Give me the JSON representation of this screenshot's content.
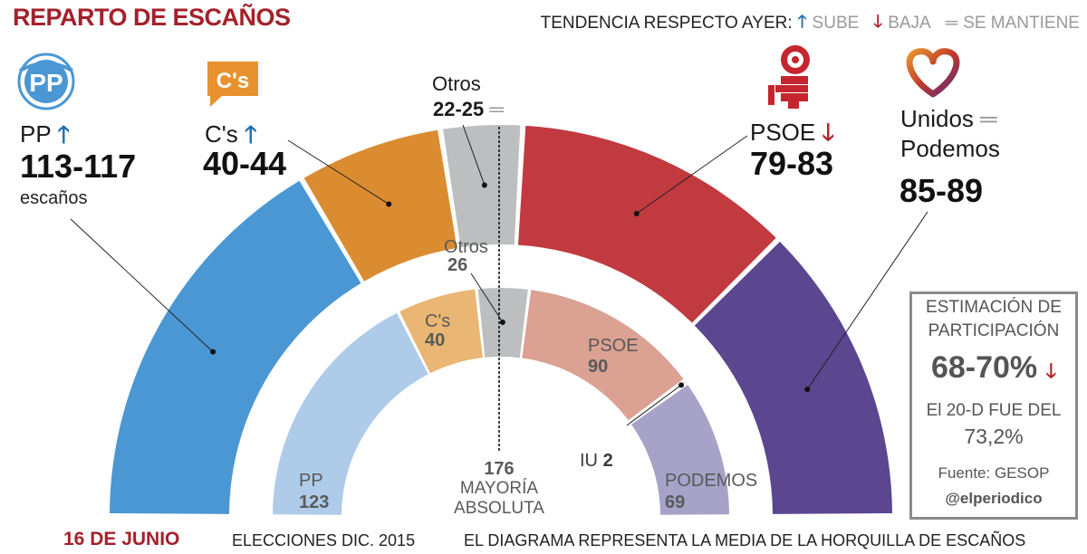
{
  "header": {
    "title": "REPARTO DE ESCAÑOS",
    "legend_label": "TENDENCIA RESPECTO AYER:",
    "legend_up": "SUBE",
    "legend_down": "BAJA",
    "legend_same": "SE MANTIENE"
  },
  "glyphs": {
    "up": "🡑",
    "down": "🡓",
    "same": "═"
  },
  "colors": {
    "brand_red": "#a3212b",
    "pp_outer": "#4a97d4",
    "cs_outer": "#db8c31",
    "otros_outer": "#bcbec0",
    "psoe_outer": "#c13a40",
    "podemos_outer": "#5b4690",
    "pp_inner": "#aecbe9",
    "cs_inner": "#e9b673",
    "otros_inner": "#bcbec0",
    "psoe_inner": "#dba193",
    "iu_inner": "#c9c9c9",
    "podemos_inner": "#a6a2c8"
  },
  "parties": {
    "pp": {
      "name": "PP",
      "range": "113-117",
      "unit": "escaños",
      "trend": "up"
    },
    "cs": {
      "name": "C's",
      "range": "40-44",
      "trend": "up"
    },
    "otros": {
      "name": "Otros",
      "range": "22-25",
      "trend": "same"
    },
    "psoe": {
      "name": "PSOE",
      "range": "79-83",
      "trend": "down"
    },
    "podemos": {
      "name_line1": "Unidos",
      "name_line2": "Podemos",
      "range": "85-89",
      "trend": "same"
    }
  },
  "inner_labels": {
    "pp": {
      "name": "PP",
      "value": "123"
    },
    "cs": {
      "name": "C's",
      "value": "40"
    },
    "otros": {
      "name": "Otros",
      "value": "26"
    },
    "psoe": {
      "name": "PSOE",
      "value": "90"
    },
    "iu": {
      "name": "IU",
      "value": "2"
    },
    "podemos": {
      "name": "PODEMOS",
      "value": "69"
    }
  },
  "majority": {
    "value": "176",
    "line1": "MAYORÍA",
    "line2": "ABSOLUTA"
  },
  "participation": {
    "line1": "ESTIMACIÓN DE",
    "line2": "PARTICIPACIÓN",
    "range": "68-70%",
    "trend": "down",
    "prev_line1": "El 20-D FUE DEL",
    "prev_value": "73,2%",
    "source": "Fuente: GESOP",
    "handle": "@elperiodico"
  },
  "logos": {
    "cs": "C's",
    "pp": "PP"
  },
  "footer": {
    "date": "16 DE JUNIO",
    "inner_note": "ELECCIONES DIC. 2015",
    "outer_note": "EL DIAGRAMA REPRESENTA LA MEDIA DE LA HORQUILLA DE ESCAÑOS"
  },
  "chart_data": [
    {
      "type": "pie",
      "title": "",
      "note": "EL DIAGRAMA REPRESENTA LA MEDIA DE LA HORQUILLA DE ESCAÑOS",
      "categories": [
        "PP",
        "C's",
        "Otros",
        "PSOE",
        "Unidos Podemos"
      ],
      "ranges": [
        "113-117",
        "40-44",
        "22-25",
        "79-83",
        "85-89"
      ],
      "values": [
        115,
        42,
        23.5,
        81,
        87
      ],
      "trend": [
        "up",
        "up",
        "same",
        "down",
        "same"
      ]
    },
    {
      "type": "pie",
      "title": "ELECCIONES DIC. 2015",
      "categories": [
        "PP",
        "C's",
        "Otros",
        "PSOE",
        "IU",
        "PODEMOS"
      ],
      "values": [
        123,
        40,
        26,
        90,
        2,
        69
      ],
      "majority": 176
    }
  ]
}
